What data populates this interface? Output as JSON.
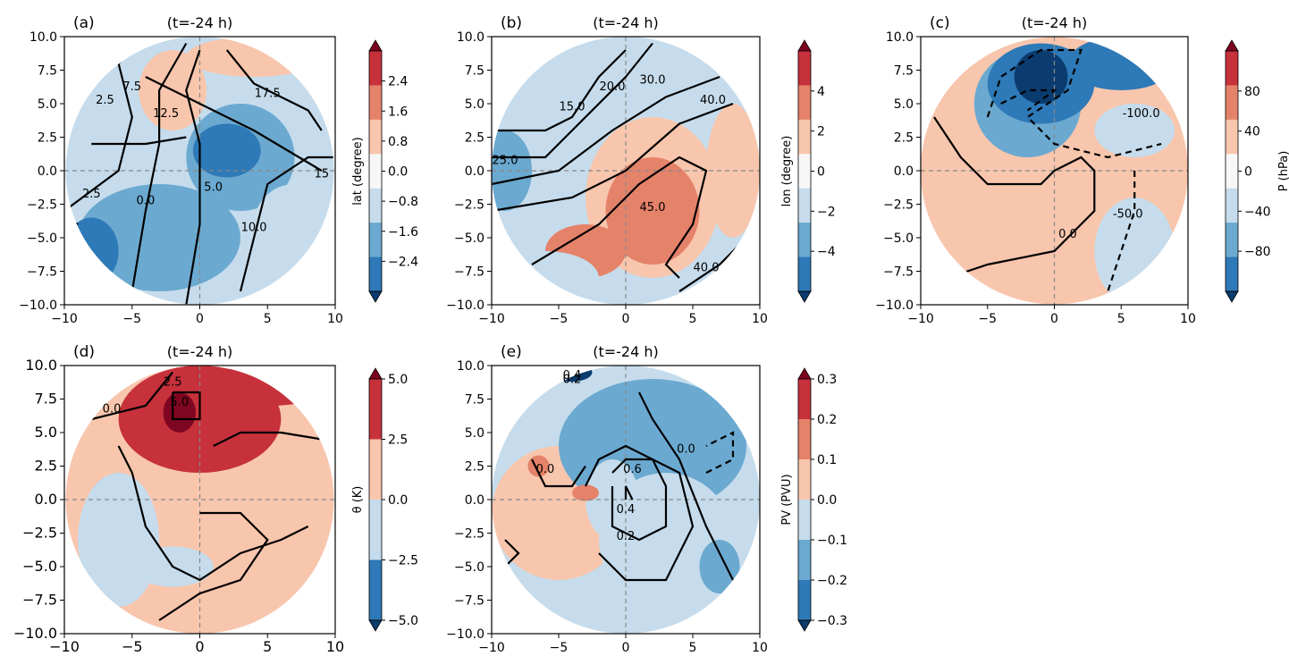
{
  "chart_data": [
    {
      "type": "heatmap",
      "panel_label": "(a)",
      "title": "(t=-24 h)",
      "xlim": [
        -10,
        10
      ],
      "ylim": [
        -10,
        10
      ],
      "xticks": [
        "−10",
        "−5",
        "0",
        "5",
        "10"
      ],
      "yticks": [
        "10.0",
        "7.5",
        "5.0",
        "2.5",
        "0.0",
        "−2.5",
        "−5.0",
        "−7.5",
        "−10.0"
      ],
      "colorbar": {
        "label": "lat (degree)",
        "levels": [
          -2.4,
          -1.6,
          -0.8,
          0.0,
          0.8,
          1.6,
          2.4
        ],
        "tick_labels": [
          "2.4",
          "1.6",
          "0.8",
          "0.0",
          "−0.8",
          "−1.6",
          "−2.4"
        ]
      },
      "contour_labels": [
        "2.5",
        "7.5",
        "12.5",
        "17.5",
        "2.5",
        "0.0",
        "5.0",
        "10.0",
        "15"
      ],
      "grid": false
    },
    {
      "type": "heatmap",
      "panel_label": "(b)",
      "title": "(t=-24 h)",
      "xlim": [
        -10,
        10
      ],
      "ylim": [
        -10,
        10
      ],
      "xticks": [
        "−10",
        "−5",
        "0",
        "5",
        "10"
      ],
      "yticks": [
        "10.0",
        "7.5",
        "5.0",
        "2.5",
        "0.0",
        "−2.5",
        "−5.0",
        "−7.5",
        "−10.0"
      ],
      "colorbar": {
        "label": "lon (degree)",
        "levels": [
          -5,
          -4,
          -2,
          0,
          2,
          4,
          5
        ],
        "tick_labels": [
          "4",
          "2",
          "0",
          "−2",
          "−4"
        ]
      },
      "contour_labels": [
        "15.0",
        "20.0",
        "30.0",
        "40.0",
        "25.0",
        "45.0",
        "40.0"
      ],
      "grid": false
    },
    {
      "type": "heatmap",
      "panel_label": "(c)",
      "title": "(t=-24 h)",
      "xlim": [
        -10,
        10
      ],
      "ylim": [
        -10,
        10
      ],
      "xticks": [
        "−10",
        "−5",
        "0",
        "5",
        "10"
      ],
      "yticks": [
        "10.0",
        "7.5",
        "5.0",
        "2.5",
        "0.0",
        "−2.5",
        "−5.0",
        "−7.5",
        "−10.0"
      ],
      "colorbar": {
        "label": "P (hPa)",
        "levels": [
          -100,
          -80,
          -40,
          0,
          40,
          80,
          100
        ],
        "tick_labels": [
          "80",
          "40",
          "0",
          "−40",
          "−80"
        ]
      },
      "contour_labels": [
        "-100.0",
        "-50.0",
        "0.0"
      ],
      "grid": false
    },
    {
      "type": "heatmap",
      "panel_label": "(d)",
      "title": "(t=-24 h)",
      "xlim": [
        -10,
        10
      ],
      "ylim": [
        -10,
        10
      ],
      "xticks": [
        "−10",
        "−5",
        "0",
        "5",
        "10"
      ],
      "yticks": [
        "10.0",
        "7.5",
        "5.0",
        "2.5",
        "0.0",
        "−2.5",
        "−5.0",
        "−7.5",
        "−10.0"
      ],
      "colorbar": {
        "label": "θ (K)",
        "levels": [
          -5.0,
          -2.5,
          0.0,
          2.5,
          5.0
        ],
        "tick_labels": [
          "5.0",
          "2.5",
          "0.0",
          "−2.5",
          "−5.0"
        ]
      },
      "contour_labels": [
        "0.0",
        "2.5",
        "5.0"
      ],
      "grid": false
    },
    {
      "type": "heatmap",
      "panel_label": "(e)",
      "title": "(t=-24 h)",
      "xlim": [
        -10,
        10
      ],
      "ylim": [
        -10,
        10
      ],
      "xticks": [
        "−10",
        "−5",
        "0",
        "5",
        "10"
      ],
      "yticks": [
        "10.0",
        "7.5",
        "5.0",
        "2.5",
        "0.0",
        "−2.5",
        "−5.0",
        "−7.5",
        "−10.0"
      ],
      "colorbar": {
        "label": "PV (PVU)",
        "levels": [
          -0.3,
          -0.2,
          -0.1,
          0.0,
          0.1,
          0.2,
          0.3
        ],
        "tick_labels": [
          "0.3",
          "0.2",
          "0.1",
          "0.0",
          "−0.1",
          "−0.2",
          "−0.3"
        ]
      },
      "contour_labels": [
        "0.4",
        "0.2",
        "0.0",
        "0.0",
        "0.6",
        "0.4",
        "0.2"
      ],
      "grid": false
    }
  ],
  "colors": {
    "dark_red": "#7f0622",
    "red": "#c6313b",
    "mid_red": "#e5826a",
    "light_red": "#f8c6ad",
    "white": "#f7f7f7",
    "light_blue": "#c6dcec",
    "mid_blue": "#6ba9d0",
    "blue": "#2e79b7",
    "dark_blue": "#0b3c6f",
    "line": "#000000",
    "dash": "#888888"
  }
}
